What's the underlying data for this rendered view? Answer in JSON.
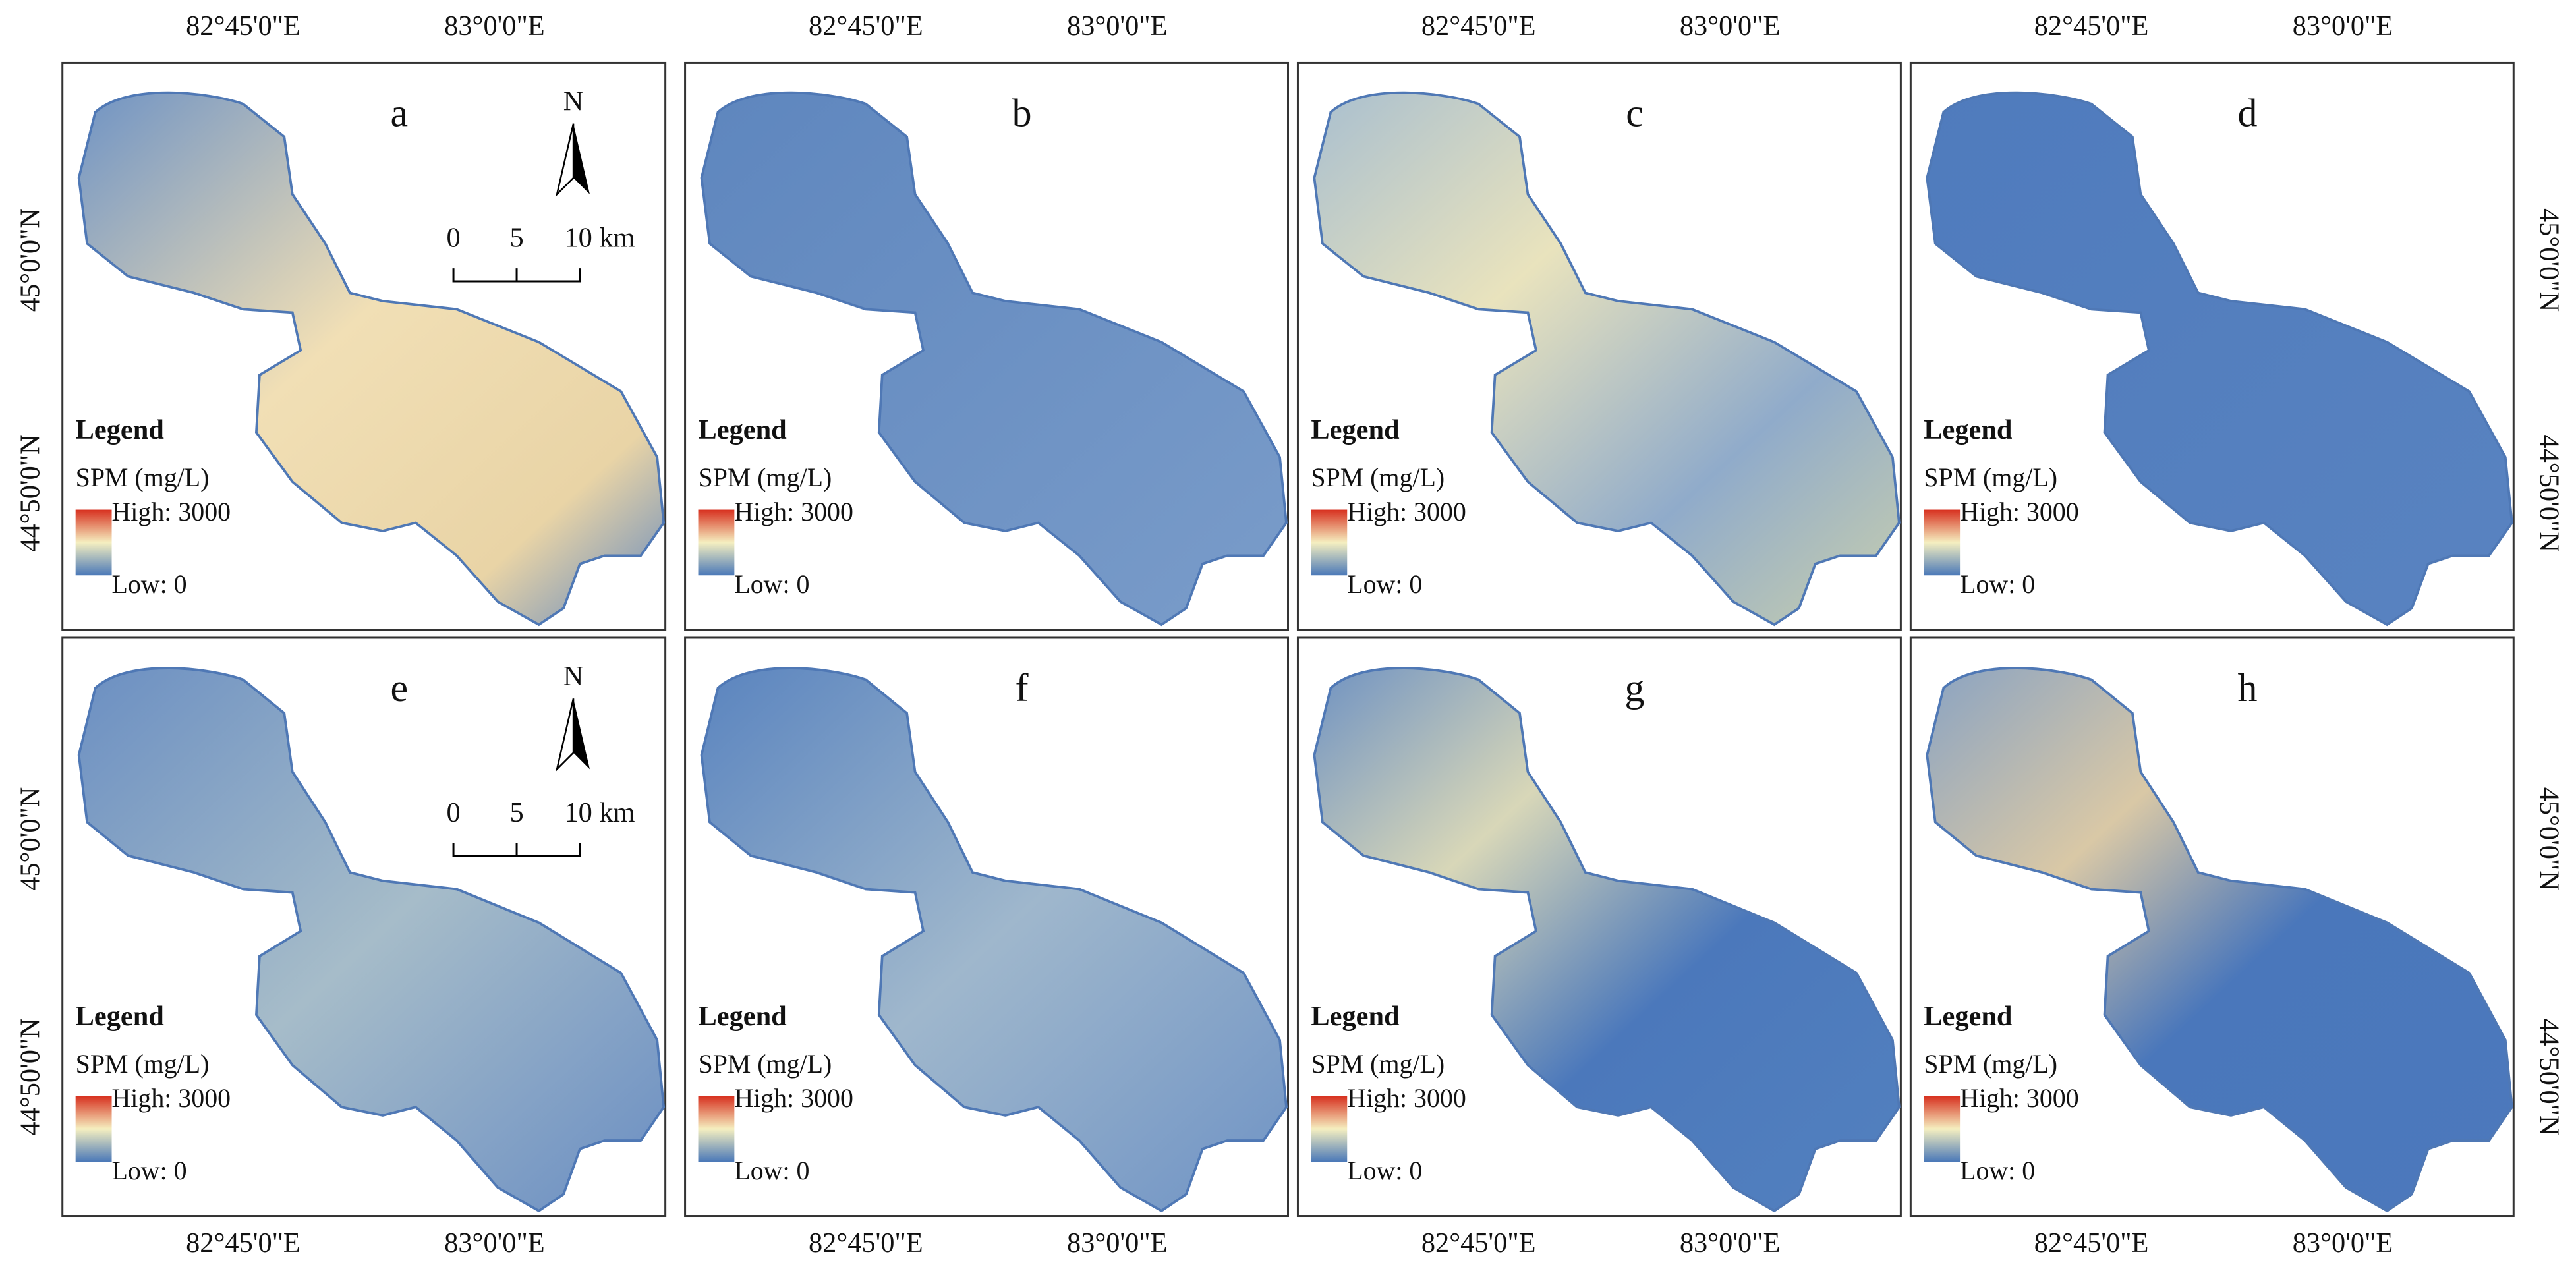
{
  "panels": [
    {
      "label": "a",
      "legend_title": "Legend",
      "legend_unit": "SPM (mg/L)",
      "legend_high": "High: 3000",
      "legend_low": "Low: 0"
    },
    {
      "label": "b",
      "legend_title": "Legend",
      "legend_unit": "SPM (mg/L)",
      "legend_high": "High: 3000",
      "legend_low": "Low: 0"
    },
    {
      "label": "c",
      "legend_title": "Legend",
      "legend_unit": "SPM (mg/L)",
      "legend_high": "High: 3000",
      "legend_low": "Low: 0"
    },
    {
      "label": "d",
      "legend_title": "Legend",
      "legend_unit": "SPM (mg/L)",
      "legend_high": "High: 3000",
      "legend_low": "Low: 0"
    },
    {
      "label": "e",
      "legend_title": "Legend",
      "legend_unit": "SPM (mg/L)",
      "legend_high": "High: 3000",
      "legend_low": "Low: 0"
    },
    {
      "label": "f",
      "legend_title": "Legend",
      "legend_unit": "SPM (mg/L)",
      "legend_high": "High: 3000",
      "legend_low": "Low: 0"
    },
    {
      "label": "g",
      "legend_title": "Legend",
      "legend_unit": "SPM (mg/L)",
      "legend_high": "High: 3000",
      "legend_low": "Low: 0"
    },
    {
      "label": "h",
      "legend_title": "Legend",
      "legend_unit": "SPM (mg/L)",
      "legend_high": "High: 3000",
      "legend_low": "Low: 0"
    }
  ],
  "north_label": "N",
  "scale_bar": [
    "0",
    "5",
    "10 km"
  ],
  "longitude_labels": [
    "82°45'0\"E",
    "83°0'0\"E"
  ],
  "latitude_labels": [
    "45°0'0\"N",
    "44°50'0\"N"
  ]
}
